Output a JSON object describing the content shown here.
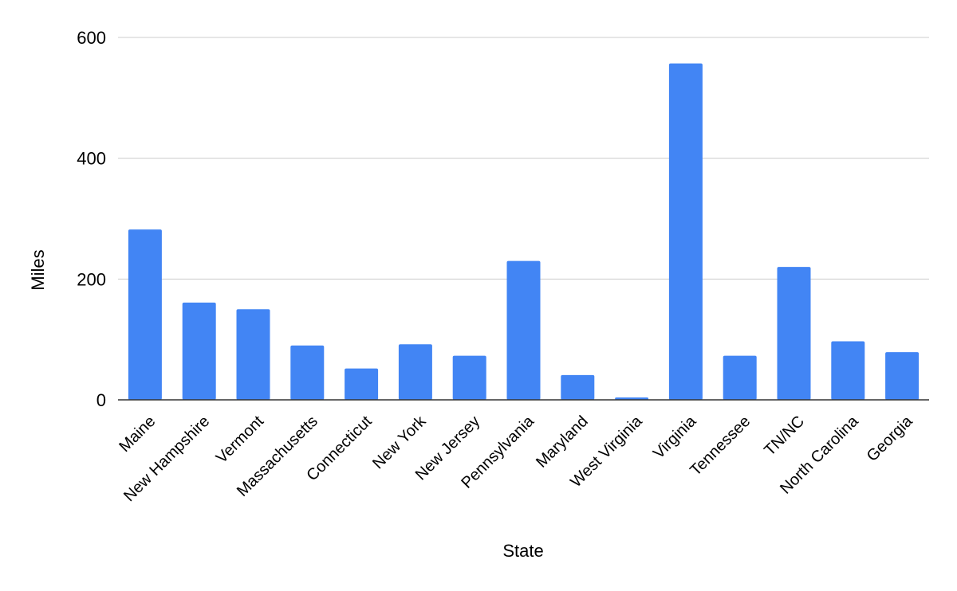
{
  "chart_data": {
    "type": "bar",
    "title": "",
    "xlabel": "State",
    "ylabel": "Miles",
    "ylim": [
      0,
      600
    ],
    "y_ticks": [
      0,
      200,
      400,
      600
    ],
    "grid": true,
    "legend": "none",
    "categories": [
      "Maine",
      "New Hampshire",
      "Vermont",
      "Massachusetts",
      "Connecticut",
      "New York",
      "New Jersey",
      "Pennsylvania",
      "Maryland",
      "West Virginia",
      "Virginia",
      "Tennessee",
      "TN/NC",
      "North Carolina",
      "Georgia"
    ],
    "series": [
      {
        "values": [
          282,
          161,
          150,
          90,
          52,
          92,
          73,
          230,
          41,
          4,
          557,
          73,
          220,
          97,
          79
        ],
        "color": "#4285f4"
      }
    ]
  }
}
